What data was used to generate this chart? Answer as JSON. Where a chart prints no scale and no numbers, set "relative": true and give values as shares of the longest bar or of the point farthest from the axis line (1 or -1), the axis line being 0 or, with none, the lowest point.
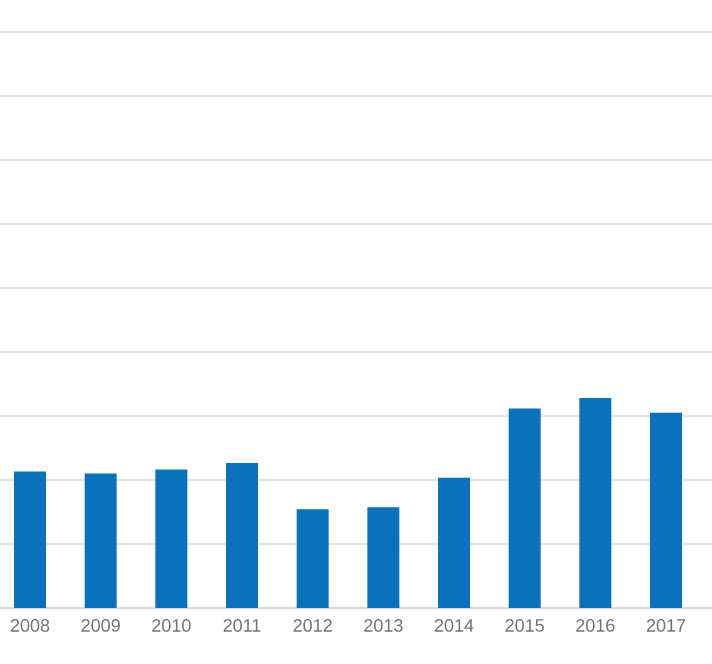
{
  "chart_data": {
    "type": "bar",
    "relative": true,
    "grid": "y",
    "color": "#0a72ba",
    "categories": [
      "2008",
      "2009",
      "2010",
      "2011",
      "2012",
      "2013",
      "2014",
      "2015",
      "2016",
      "2017"
    ],
    "values": [
      0.65,
      0.64,
      0.66,
      0.69,
      0.47,
      0.48,
      0.62,
      0.95,
      1,
      0.93
    ]
  }
}
